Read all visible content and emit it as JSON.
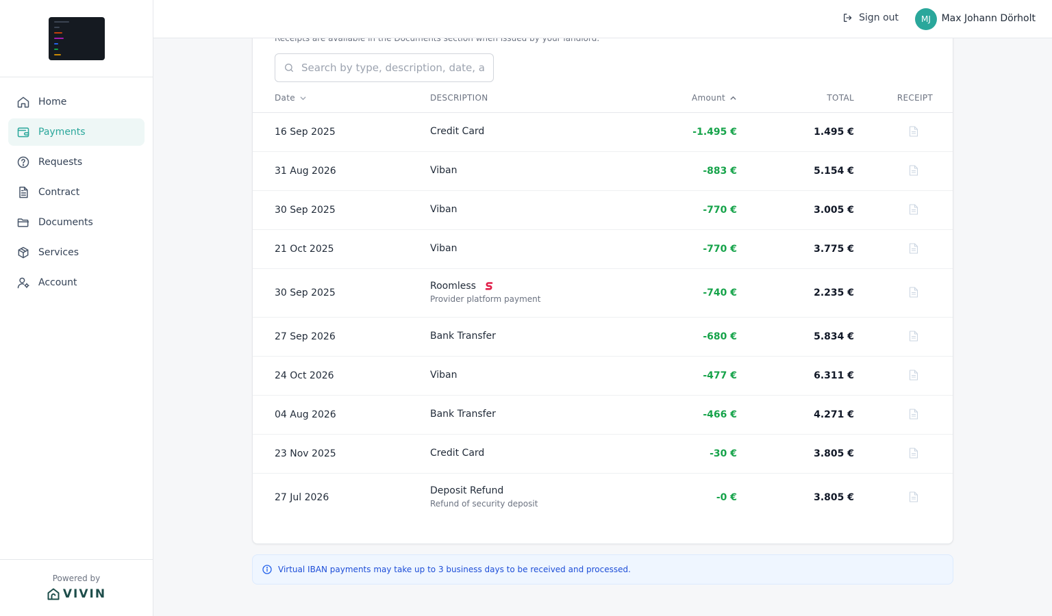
{
  "sidebar": {
    "items": [
      {
        "label": "Home",
        "icon": "home-icon"
      },
      {
        "label": "Payments",
        "icon": "wallet-icon",
        "active": true
      },
      {
        "label": "Requests",
        "icon": "help-circle-icon"
      },
      {
        "label": "Contract",
        "icon": "document-icon"
      },
      {
        "label": "Documents",
        "icon": "folder-icon"
      },
      {
        "label": "Services",
        "icon": "package-icon"
      },
      {
        "label": "Account",
        "icon": "user-settings-icon"
      }
    ],
    "powered_by": "Powered by",
    "brand": "VIVIN"
  },
  "header": {
    "sign_out": "Sign out",
    "avatar_initials": "MJ",
    "user_name": "Max Johann Dörholt"
  },
  "payments": {
    "note": "Receipts are available in the Documents section when issued by your landlord.",
    "search_placeholder": "Search by type, description, date, amount",
    "columns": {
      "date": "Date",
      "description": "DESCRIPTION",
      "amount": "Amount",
      "total": "TOTAL",
      "receipt": "RECEIPT"
    },
    "rows": [
      {
        "date": "16 Sep 2025",
        "description": "Credit Card",
        "sub": "",
        "amount": "-1.495 €",
        "total": "1.495 €"
      },
      {
        "date": "31 Aug 2026",
        "description": "Viban",
        "sub": "",
        "amount": "-883 €",
        "total": "5.154 €"
      },
      {
        "date": "30 Sep 2025",
        "description": "Viban",
        "sub": "",
        "amount": "-770 €",
        "total": "3.005 €"
      },
      {
        "date": "21 Oct 2025",
        "description": "Viban",
        "sub": "",
        "amount": "-770 €",
        "total": "3.775 €"
      },
      {
        "date": "30 Sep 2025",
        "description": "Roomless",
        "sub": "Provider platform payment",
        "amount": "-740 €",
        "total": "2.235 €",
        "provider_badge": true
      },
      {
        "date": "27 Sep 2026",
        "description": "Bank Transfer",
        "sub": "",
        "amount": "-680 €",
        "total": "5.834 €"
      },
      {
        "date": "24 Oct 2026",
        "description": "Viban",
        "sub": "",
        "amount": "-477 €",
        "total": "6.311 €"
      },
      {
        "date": "04 Aug 2026",
        "description": "Bank Transfer",
        "sub": "",
        "amount": "-466 €",
        "total": "4.271 €"
      },
      {
        "date": "23 Nov 2025",
        "description": "Credit Card",
        "sub": "",
        "amount": "-30 €",
        "total": "3.805 €"
      },
      {
        "date": "27 Jul 2026",
        "description": "Deposit Refund",
        "sub": "Refund of security deposit",
        "amount": "-0 €",
        "total": "3.805 €"
      }
    ]
  },
  "info_banner": "Virtual IBAN payments may take up to 3 business days to be received and processed.",
  "colors": {
    "accent": "#2aa79b",
    "amount_negative": "#16a34a",
    "info": "#1d4ed8",
    "provider_badge": "#e11d48"
  }
}
